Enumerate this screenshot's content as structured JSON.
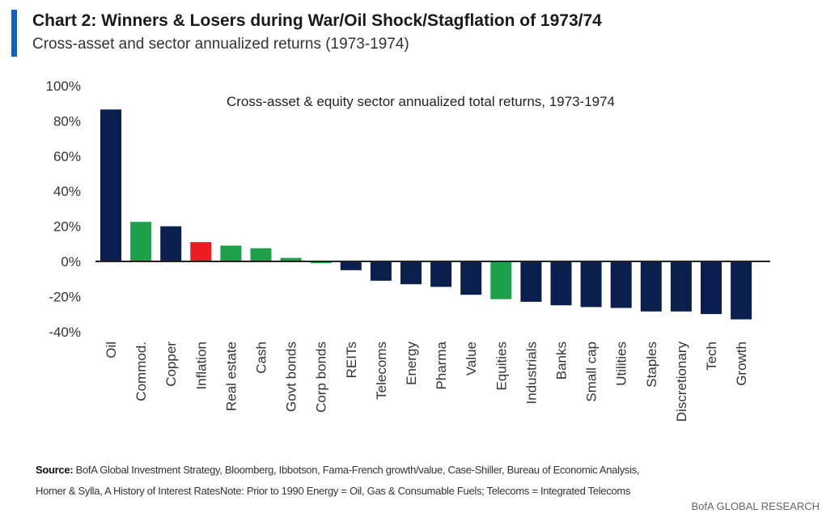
{
  "header": {
    "title": "Chart 2: Winners & Losers during War/Oil Shock/Stagflation of 1973/74",
    "subtitle": "Cross-asset and sector annualized returns (1973-1974)"
  },
  "colors": {
    "navy": "#0b1f4f",
    "green": "#1fa04a",
    "red": "#ec1c24",
    "accent": "#1560bd"
  },
  "chart_data": {
    "type": "bar",
    "title": "Cross-asset & equity sector annualized total returns, 1973-1974",
    "xlabel": "",
    "ylabel": "",
    "ylim": [
      -40,
      100
    ],
    "yticks": [
      -40,
      -20,
      0,
      20,
      40,
      60,
      80,
      100
    ],
    "ytick_labels": [
      "-40%",
      "-20%",
      "0%",
      "20%",
      "40%",
      "60%",
      "80%",
      "100%"
    ],
    "grid": false,
    "categories": [
      "Oil",
      "Commod.",
      "Copper",
      "Inflation",
      "Real estate",
      "Cash",
      "Govt bonds",
      "Corp bonds",
      "REITs",
      "Telecoms",
      "Energy",
      "Pharma",
      "Value",
      "Equities",
      "Industrials",
      "Banks",
      "Small cap",
      "Utilities",
      "Staples",
      "Discretionary",
      "Tech",
      "Growth"
    ],
    "values": [
      86.5,
      22.5,
      20,
      11,
      9,
      7.5,
      2,
      -1,
      -5,
      -11,
      -13,
      -14.5,
      -19,
      -21.5,
      -23,
      -25,
      -26,
      -26.5,
      -28.5,
      -28.5,
      -30,
      -33
    ],
    "bar_colors": [
      "navy",
      "green",
      "navy",
      "red",
      "green",
      "green",
      "green",
      "green",
      "navy",
      "navy",
      "navy",
      "navy",
      "navy",
      "green",
      "navy",
      "navy",
      "navy",
      "navy",
      "navy",
      "navy",
      "navy",
      "navy"
    ]
  },
  "footer": {
    "source_label": "Source:",
    "source_text": "BofA Global Investment Strategy, Bloomberg, Ibbotson,  Fama-French growth/value, Case-Shiller, Bureau of Economic Analysis,",
    "source_text2": "Homer & Sylla, A History of Interest RatesNote:  Prior to 1990  Energy = Oil, Gas & Consumable  Fuels;  Telecoms = Integrated Telecoms",
    "brand": "BofA GLOBAL RESEARCH"
  }
}
